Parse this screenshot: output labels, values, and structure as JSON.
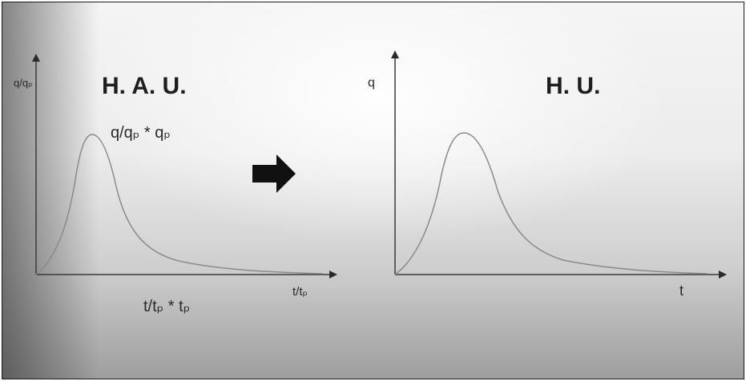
{
  "left_panel": {
    "title": "H. A. U.",
    "y_axis_label": "q/qₚ",
    "x_axis_label": "t/tₚ",
    "curve_label": "q/qₚ  * qₚ",
    "x_transform_label": "t/tₚ  * tₚ"
  },
  "right_panel": {
    "title": "H. U.",
    "y_axis_label": "q",
    "x_axis_label": "t"
  },
  "arrow_icon": "right-arrow-icon",
  "curve_color": "#8a8a8a",
  "axis_color": "#3a3a3a"
}
